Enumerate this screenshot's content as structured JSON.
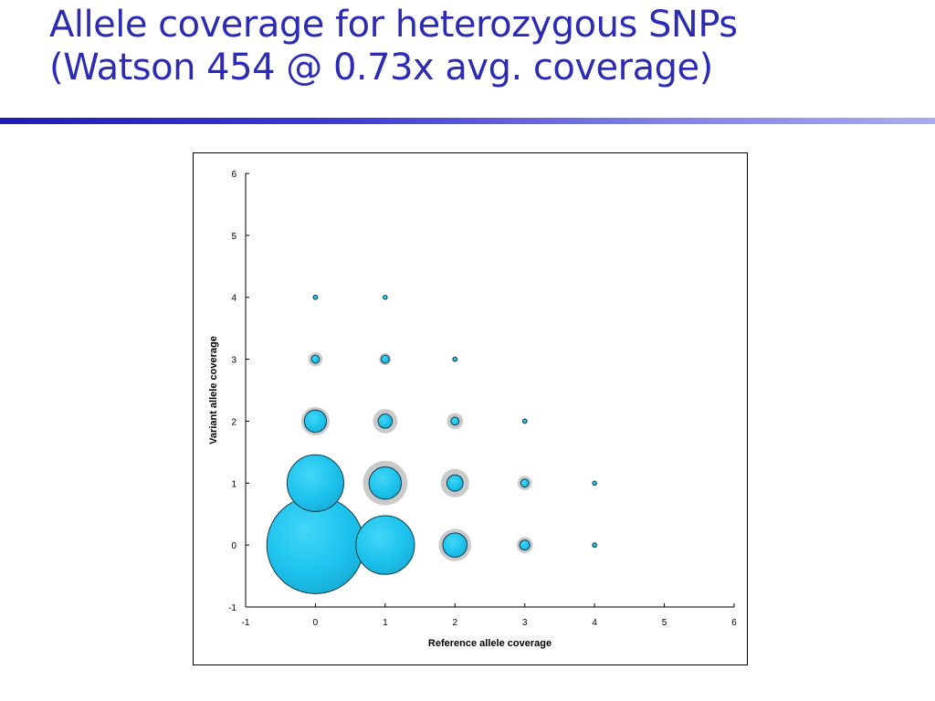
{
  "slide": {
    "title_line1": "Allele coverage for heterozygous SNPs",
    "title_line2": "(Watson 454 @ 0.73x avg. coverage)",
    "title_color": "#2b2bb5",
    "rule_color": "#1d1db5"
  },
  "chart_data": {
    "type": "scatter",
    "subtype": "bubble",
    "xlabel": "Reference allele coverage",
    "ylabel": "Variant allele coverage",
    "xlim": [
      -1,
      6
    ],
    "ylim": [
      -1,
      6
    ],
    "xticks": [
      -1,
      0,
      1,
      2,
      3,
      4,
      5,
      6
    ],
    "yticks": [
      -1,
      0,
      1,
      2,
      3,
      4,
      5,
      6
    ],
    "grid": false,
    "legend": "none",
    "bubble_color": "#1ec4ee",
    "halo_color": "#b8b8b8",
    "points": [
      {
        "x": 0,
        "y": 0,
        "size": 48,
        "halo": 48
      },
      {
        "x": 1,
        "y": 0,
        "size": 29,
        "halo": 29
      },
      {
        "x": 2,
        "y": 0,
        "size": 12,
        "halo": 16
      },
      {
        "x": 3,
        "y": 0,
        "size": 5,
        "halo": 8
      },
      {
        "x": 4,
        "y": 0,
        "size": 2,
        "halo": 3
      },
      {
        "x": 0,
        "y": 1,
        "size": 28,
        "halo": 28
      },
      {
        "x": 1,
        "y": 1,
        "size": 16,
        "halo": 22
      },
      {
        "x": 2,
        "y": 1,
        "size": 8,
        "halo": 14
      },
      {
        "x": 3,
        "y": 1,
        "size": 4,
        "halo": 7
      },
      {
        "x": 4,
        "y": 1,
        "size": 2,
        "halo": 2
      },
      {
        "x": 0,
        "y": 2,
        "size": 11,
        "halo": 14
      },
      {
        "x": 1,
        "y": 2,
        "size": 7,
        "halo": 12
      },
      {
        "x": 2,
        "y": 2,
        "size": 4,
        "halo": 8
      },
      {
        "x": 3,
        "y": 2,
        "size": 2,
        "halo": 3
      },
      {
        "x": 0,
        "y": 3,
        "size": 4,
        "halo": 7
      },
      {
        "x": 1,
        "y": 3,
        "size": 4,
        "halo": 6
      },
      {
        "x": 2,
        "y": 3,
        "size": 2,
        "halo": 3
      },
      {
        "x": 0,
        "y": 4,
        "size": 2,
        "halo": 3
      },
      {
        "x": 1,
        "y": 4,
        "size": 2,
        "halo": 2
      }
    ]
  }
}
